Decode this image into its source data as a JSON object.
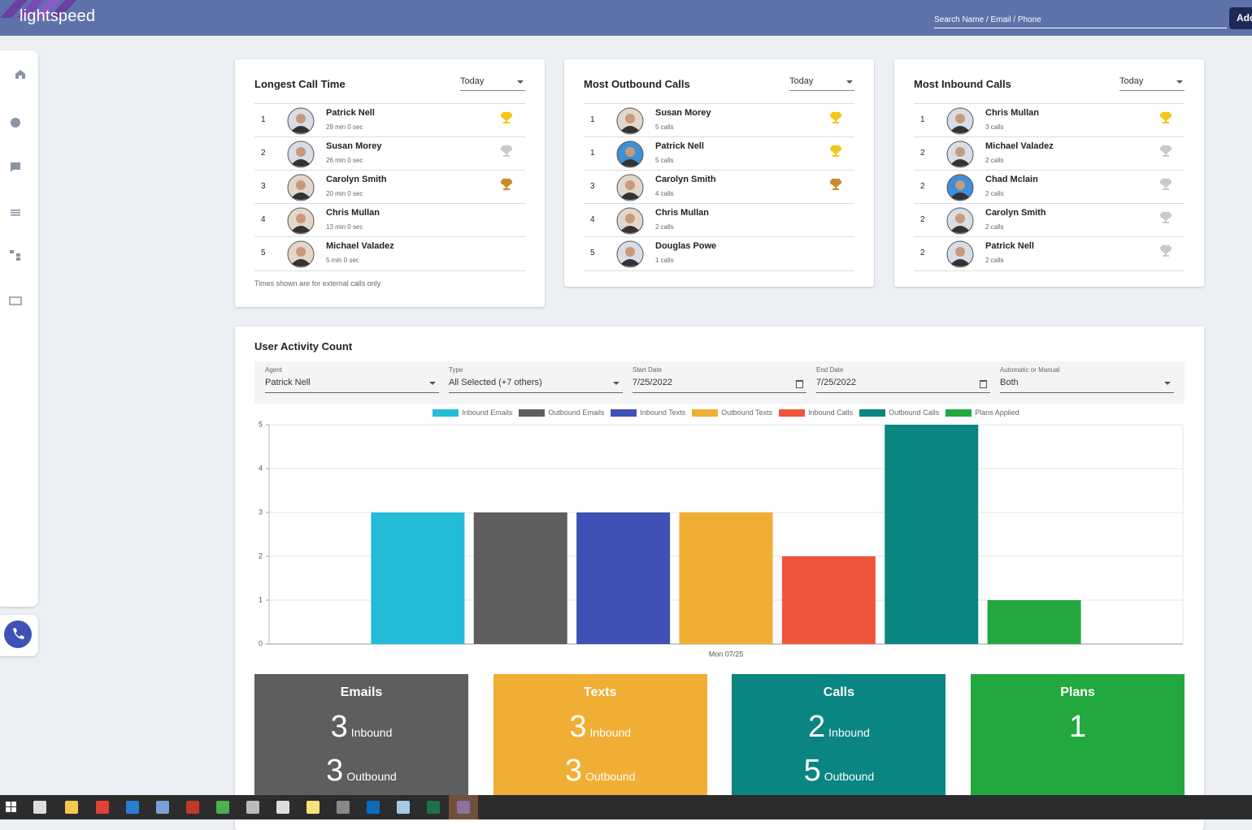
{
  "header": {
    "logo": "lightspeed",
    "search_placeholder": "Search Name / Email / Phone",
    "add_button": "Add"
  },
  "leaderboards": [
    {
      "title": "Longest Call Time",
      "period": "Today",
      "rows": [
        {
          "rank": 1,
          "name": "Patrick Nell",
          "detail": "29 min 0 sec",
          "trophy": "gold"
        },
        {
          "rank": 2,
          "name": "Susan Morey",
          "detail": "26 min 0 sec",
          "trophy": "silver"
        },
        {
          "rank": 3,
          "name": "Carolyn Smith",
          "detail": "20 min 0 sec",
          "trophy": "bronze"
        },
        {
          "rank": 4,
          "name": "Chris Mullan",
          "detail": "13 min 0 sec",
          "trophy": null
        },
        {
          "rank": 5,
          "name": "Michael Valadez",
          "detail": "5 min 0 sec",
          "trophy": null
        }
      ],
      "footnote": "Times shown are for external calls only"
    },
    {
      "title": "Most Outbound Calls",
      "period": "Today",
      "rows": [
        {
          "rank": 1,
          "name": "Susan Morey",
          "detail": "5 calls",
          "trophy": "gold"
        },
        {
          "rank": 1,
          "name": "Patrick Nell",
          "detail": "5 calls",
          "trophy": "gold"
        },
        {
          "rank": 3,
          "name": "Carolyn Smith",
          "detail": "4 calls",
          "trophy": "bronze"
        },
        {
          "rank": 4,
          "name": "Chris Mullan",
          "detail": "2 calls",
          "trophy": null
        },
        {
          "rank": 5,
          "name": "Douglas Powe",
          "detail": "1 calls",
          "trophy": null
        }
      ]
    },
    {
      "title": "Most Inbound Calls",
      "period": "Today",
      "rows": [
        {
          "rank": 1,
          "name": "Chris Mullan",
          "detail": "3 calls",
          "trophy": "gold"
        },
        {
          "rank": 2,
          "name": "Michael Valadez",
          "detail": "2 calls",
          "trophy": "silver"
        },
        {
          "rank": 2,
          "name": "Chad Mclain",
          "detail": "2 calls",
          "trophy": "silver"
        },
        {
          "rank": 2,
          "name": "Carolyn Smith",
          "detail": "2 calls",
          "trophy": "silver"
        },
        {
          "rank": 2,
          "name": "Patrick Nell",
          "detail": "2 calls",
          "trophy": "silver"
        }
      ]
    }
  ],
  "filters": [
    {
      "label": "Agent",
      "value": "Patrick Nell",
      "kind": "select"
    },
    {
      "label": "Type",
      "value": "All Selected (+7 others)",
      "kind": "select"
    },
    {
      "label": "Start Date",
      "value": "7/25/2022",
      "kind": "date"
    },
    {
      "label": "End Date",
      "value": "7/25/2022",
      "kind": "date"
    },
    {
      "label": "Automatic or Manual",
      "value": "Both",
      "kind": "select"
    }
  ],
  "chart_data": {
    "type": "bar",
    "title": "User Activity Count",
    "categories": [
      "Mon 07/25"
    ],
    "series": [
      {
        "name": "Inbound Emails",
        "color": "#22bcd9",
        "values": [
          3
        ]
      },
      {
        "name": "Outbound Emails",
        "color": "#5e5e5e",
        "values": [
          3
        ]
      },
      {
        "name": "Inbound Texts",
        "color": "#3f51b5",
        "values": [
          3
        ]
      },
      {
        "name": "Outbound Texts",
        "color": "#f0ae34",
        "values": [
          3
        ]
      },
      {
        "name": "Inbound Calls",
        "color": "#ee553b",
        "values": [
          2
        ]
      },
      {
        "name": "Outbound Calls",
        "color": "#0a8582",
        "values": [
          5
        ]
      },
      {
        "name": "Plans Applied",
        "color": "#23a83f",
        "values": [
          1
        ]
      }
    ],
    "ylim": [
      0,
      5
    ],
    "yticks": [
      0,
      1,
      2,
      3,
      4,
      5
    ],
    "grid": true,
    "legend": "top"
  },
  "summary": [
    {
      "title": "Emails",
      "color": "#5e5e5e",
      "inbound": 3,
      "inbound_label": "Inbound",
      "outbound": 3,
      "outbound_label": "Outbound"
    },
    {
      "title": "Texts",
      "color": "#f0ae34",
      "inbound": 3,
      "inbound_label": "Inbound",
      "outbound": 3,
      "outbound_label": "Outbound"
    },
    {
      "title": "Calls",
      "color": "#0a8582",
      "inbound": 2,
      "inbound_label": "Inbound",
      "outbound": 5,
      "outbound_label": "Outbound"
    },
    {
      "title": "Plans",
      "color": "#23a83f",
      "total": 1
    }
  ]
}
